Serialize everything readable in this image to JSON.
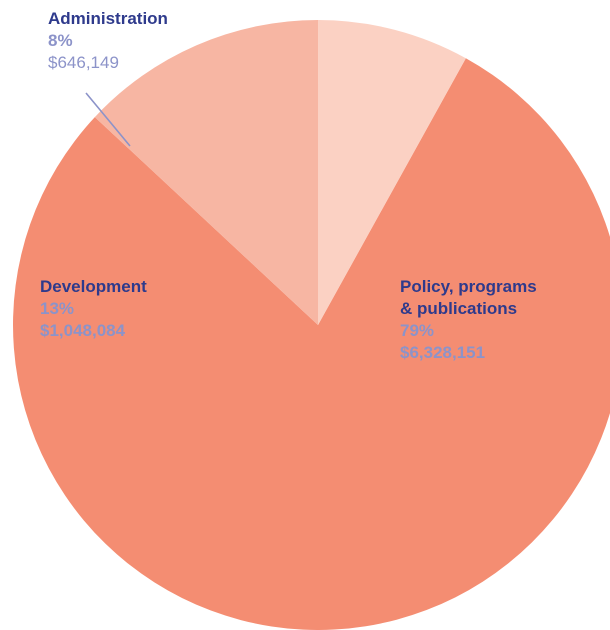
{
  "chart_data": {
    "type": "pie",
    "slices": [
      {
        "name_lines": [
          "Policy, programs",
          "& publications"
        ],
        "percent_label": "79%",
        "amount_label": "$6,328,151",
        "value": 6328151,
        "color": "#f48d72"
      },
      {
        "name_lines": [
          "Development"
        ],
        "percent_label": "13%",
        "amount_label": "$1,048,084",
        "value": 1048084,
        "color": "#f7b6a3"
      },
      {
        "name_lines": [
          "Administration"
        ],
        "percent_label": "8%",
        "amount_label": "$646,149",
        "value": 646149,
        "color": "#fbd1c3"
      }
    ],
    "title": "",
    "legend": "none",
    "label_colors": {
      "name": "#2e3a8c",
      "value": "#8c93c9"
    }
  }
}
